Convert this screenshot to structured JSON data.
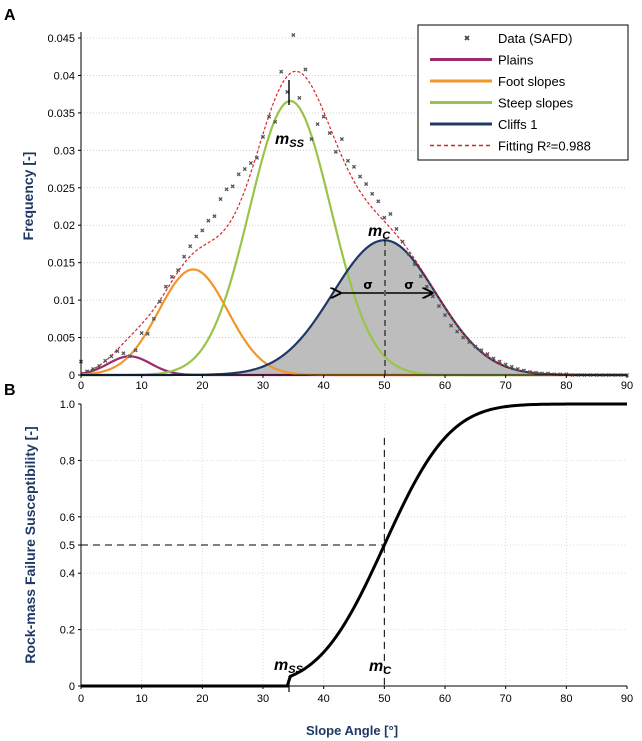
{
  "chart_data": [
    {
      "panel_label": "A",
      "type": "line",
      "ylabel": "Frequency [-]",
      "xlim": [
        0,
        90
      ],
      "ylim": [
        0,
        0.045
      ],
      "x_ticks": [
        "0",
        "10",
        "20",
        "30",
        "40",
        "50",
        "60",
        "70",
        "80",
        "90"
      ],
      "y_ticks": [
        "0",
        "0.005",
        "0.01",
        "0.015",
        "0.02",
        "0.025",
        "0.03",
        "0.035",
        "0.04",
        "0.045"
      ],
      "grid": "horizontal dotted",
      "legend_position": "top-right",
      "series": [
        {
          "name": "Data (SAFD)",
          "kind": "scatter",
          "color": "#555555",
          "x": [
            0,
            1,
            2,
            3,
            4,
            5,
            6,
            7,
            8,
            9,
            10,
            11,
            12,
            13,
            14,
            15,
            16,
            17,
            18,
            19,
            20,
            21,
            22,
            23,
            24,
            25,
            26,
            27,
            28,
            29,
            30,
            31,
            32,
            33,
            34,
            35,
            36,
            37,
            38,
            39,
            40,
            41,
            42,
            43,
            44,
            45,
            46,
            47,
            48,
            49,
            50,
            51,
            52,
            53,
            54,
            55,
            56,
            57,
            58,
            59,
            60,
            61,
            62,
            63,
            64,
            65,
            66,
            67,
            68,
            69,
            70,
            71,
            72,
            73,
            74,
            75,
            76,
            77,
            78,
            79,
            80,
            81,
            82,
            83,
            84,
            85,
            86,
            87,
            88,
            89,
            90
          ],
          "y": [
            0.0018,
            0.0005,
            0.0008,
            0.0012,
            0.0019,
            0.0025,
            0.0032,
            0.0029,
            0.0025,
            0.0033,
            0.0056,
            0.0055,
            0.0075,
            0.0098,
            0.0118,
            0.0131,
            0.014,
            0.0158,
            0.0172,
            0.0185,
            0.0193,
            0.0206,
            0.0212,
            0.0235,
            0.0248,
            0.0252,
            0.0268,
            0.0275,
            0.0283,
            0.029,
            0.0318,
            0.0345,
            0.0338,
            0.0405,
            0.0378,
            0.0454,
            0.037,
            0.0408,
            0.0315,
            0.0335,
            0.0345,
            0.0323,
            0.0298,
            0.0315,
            0.0286,
            0.0278,
            0.0265,
            0.0255,
            0.0242,
            0.0232,
            0.021,
            0.0215,
            0.0195,
            0.0178,
            0.0162,
            0.0148,
            0.0132,
            0.0118,
            0.0105,
            0.0092,
            0.008,
            0.0066,
            0.0058,
            0.005,
            0.0044,
            0.0038,
            0.0033,
            0.0028,
            0.0022,
            0.0018,
            0.0014,
            0.0011,
            0.0008,
            0.0006,
            0.0004,
            0.0003,
            0.0002,
            0.0002,
            0.0001,
            0.0001,
            0.0001,
            0.0,
            0.0,
            0.0,
            0.0,
            0.0,
            0.0,
            0.0,
            0.0,
            0.0,
            0.0
          ]
        },
        {
          "name": "Plains",
          "kind": "gaussian",
          "color": "#9b2a6f",
          "mu": 8,
          "sigma": 3.5,
          "peak": 0.0025
        },
        {
          "name": "Foot slopes",
          "kind": "gaussian",
          "color": "#f0962a",
          "mu": 18.5,
          "sigma": 5.7,
          "peak": 0.0141
        },
        {
          "name": "Steep slopes",
          "kind": "gaussian",
          "color": "#98c548",
          "mu": 34.5,
          "sigma": 6.7,
          "peak": 0.0366
        },
        {
          "name": "Cliffs 1",
          "kind": "gaussian",
          "color": "#1f3864",
          "mu": 50,
          "sigma": 8.5,
          "peak": 0.018,
          "shaded": true
        },
        {
          "name": "Fitting  R²=0.988",
          "kind": "fit",
          "color": "#d9242b",
          "style": "dashed"
        }
      ],
      "annotations": {
        "mss": {
          "main": "m",
          "sub": "SS",
          "x": 34.5
        },
        "mc": {
          "main": "m",
          "sub": "C",
          "x": 50
        },
        "sigma_left": "σ",
        "sigma_right": "σ"
      }
    },
    {
      "panel_label": "B",
      "type": "line",
      "ylabel": "Rock-mass Failure Susceptibility [-]",
      "xlabel": "Slope Angle [°]",
      "xlim": [
        0,
        90
      ],
      "ylim": [
        0,
        1.0
      ],
      "x_ticks": [
        "0",
        "10",
        "20",
        "30",
        "40",
        "50",
        "60",
        "70",
        "80",
        "90"
      ],
      "y_ticks": [
        {
          "label": "0",
          "value": 0
        },
        {
          "label": "0.2",
          "value": 0.2
        },
        {
          "label": "0.4",
          "value": 0.4
        },
        {
          "label": "0.5",
          "value": 0.5
        },
        {
          "label": "0.6",
          "value": 0.6
        },
        {
          "label": "0.8",
          "value": 0.8
        },
        {
          "label": "1.0",
          "value": 1.0
        }
      ],
      "series": [
        {
          "name": "",
          "kind": "cdf",
          "color": "#000000",
          "mu": 50,
          "sigma": 8.5,
          "start_x": 34.5
        }
      ],
      "reference_lines": {
        "x": 50,
        "y": 0.5
      },
      "annotations": {
        "mss": {
          "main": "m",
          "sub": "SS",
          "x": 34.5
        },
        "mc": {
          "main": "m",
          "sub": "C",
          "x": 50
        }
      }
    }
  ]
}
